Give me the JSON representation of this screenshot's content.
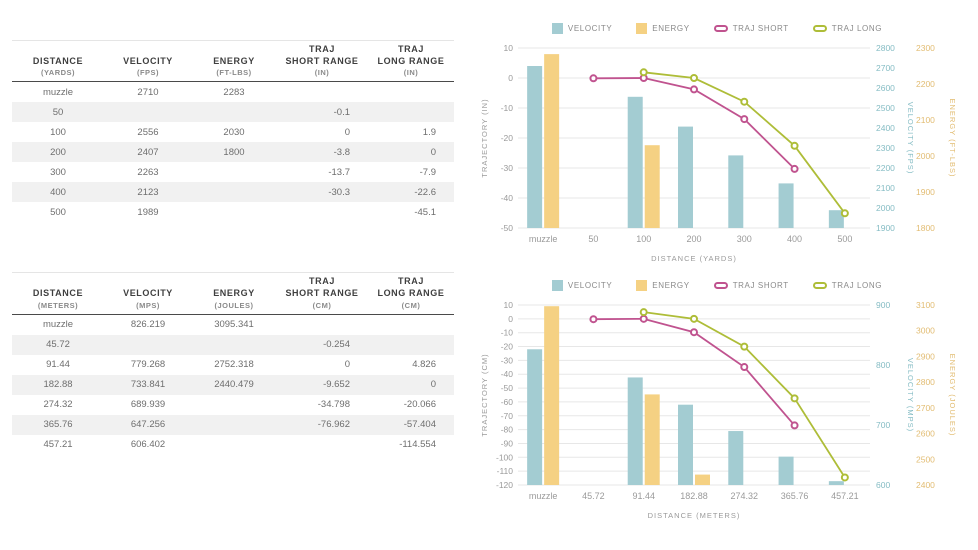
{
  "tables": [
    {
      "name": "imperial",
      "headers": [
        {
          "label": "DISTANCE",
          "unit": "(YARDS)"
        },
        {
          "label": "VELOCITY",
          "unit": "(FPS)"
        },
        {
          "label": "ENERGY",
          "unit": "(FT-LBS)"
        },
        {
          "label": "TRAJ\nSHORT RANGE",
          "unit": "(IN)"
        },
        {
          "label": "TRAJ\nLONG RANGE",
          "unit": "(IN)"
        }
      ],
      "rows": [
        [
          "muzzle",
          "2710",
          "2283",
          "",
          ""
        ],
        [
          "50",
          "",
          "",
          "-0.1",
          ""
        ],
        [
          "100",
          "2556",
          "2030",
          "0",
          "1.9"
        ],
        [
          "200",
          "2407",
          "1800",
          "-3.8",
          "0"
        ],
        [
          "300",
          "2263",
          "",
          "-13.7",
          "-7.9"
        ],
        [
          "400",
          "2123",
          "",
          "-30.3",
          "-22.6"
        ],
        [
          "500",
          "1989",
          "",
          "",
          "-45.1"
        ]
      ]
    },
    {
      "name": "metric",
      "headers": [
        {
          "label": "DISTANCE",
          "unit": "(METERS)"
        },
        {
          "label": "VELOCITY",
          "unit": "(MPS)"
        },
        {
          "label": "ENERGY",
          "unit": "(JOULES)"
        },
        {
          "label": "TRAJ\nSHORT RANGE",
          "unit": "(CM)"
        },
        {
          "label": "TRAJ\nLONG RANGE",
          "unit": "(CM)"
        }
      ],
      "rows": [
        [
          "muzzle",
          "826.219",
          "3095.341",
          "",
          ""
        ],
        [
          "45.72",
          "",
          "",
          "-0.254",
          ""
        ],
        [
          "91.44",
          "779.268",
          "2752.318",
          "0",
          "4.826"
        ],
        [
          "182.88",
          "733.841",
          "2440.479",
          "-9.652",
          "0"
        ],
        [
          "274.32",
          "689.939",
          "",
          "-34.798",
          "-20.066"
        ],
        [
          "365.76",
          "647.256",
          "",
          "-76.962",
          "-57.404"
        ],
        [
          "457.21",
          "606.402",
          "",
          "",
          "-114.554"
        ]
      ]
    }
  ],
  "chart_data": [
    {
      "type": "bar",
      "title": "",
      "xlabel": "DISTANCE (YARDS)",
      "x_categories": [
        "muzzle",
        "50",
        "100",
        "200",
        "300",
        "400",
        "500"
      ],
      "grid": true,
      "legend_position": "top",
      "axes": {
        "trajectory": {
          "label": "TRAJECTORY (IN)",
          "min": -50,
          "max": 10,
          "step": 10
        },
        "velocity": {
          "label": "VELOCITY (FPS)",
          "min": 1900,
          "max": 2800,
          "step": 100
        },
        "energy": {
          "label": "ENERGY (FT-LBS)",
          "min": 1800,
          "max": 2300,
          "step": 100
        }
      },
      "series": [
        {
          "name": "VELOCITY",
          "type": "bar",
          "axis": "velocity",
          "color": "#a3ccd2",
          "values": [
            2710,
            null,
            2556,
            2407,
            2263,
            2123,
            1989
          ]
        },
        {
          "name": "ENERGY",
          "type": "bar",
          "axis": "energy",
          "color": "#f5d183",
          "values": [
            2283,
            null,
            2030,
            1800,
            null,
            null,
            null
          ]
        },
        {
          "name": "TRAJ SHORT",
          "type": "line",
          "axis": "trajectory",
          "color": "#c0538f",
          "values": [
            null,
            -0.1,
            0,
            -3.8,
            -13.7,
            -30.3,
            null
          ]
        },
        {
          "name": "TRAJ LONG",
          "type": "line",
          "axis": "trajectory",
          "color": "#aebd38",
          "values": [
            null,
            null,
            1.9,
            0,
            -7.9,
            -22.6,
            -45.1
          ]
        }
      ]
    },
    {
      "type": "bar",
      "title": "",
      "xlabel": "DISTANCE (METERS)",
      "x_categories": [
        "muzzle",
        "45.72",
        "91.44",
        "182.88",
        "274.32",
        "365.76",
        "457.21"
      ],
      "grid": true,
      "legend_position": "top",
      "axes": {
        "trajectory": {
          "label": "TRAJECTORY (CM)",
          "min": -120,
          "max": 10,
          "step": 10
        },
        "velocity": {
          "label": "VELOCITY (MPS)",
          "min": 600,
          "max": 900,
          "step": 100
        },
        "energy": {
          "label": "ENERGY (JOULES)",
          "min": 2400,
          "max": 3100,
          "step": 100
        }
      },
      "series": [
        {
          "name": "VELOCITY",
          "type": "bar",
          "axis": "velocity",
          "color": "#a3ccd2",
          "values": [
            826.219,
            null,
            779.268,
            733.841,
            689.939,
            647.256,
            606.402
          ]
        },
        {
          "name": "ENERGY",
          "type": "bar",
          "axis": "energy",
          "color": "#f5d183",
          "values": [
            3095.341,
            null,
            2752.318,
            2440.479,
            null,
            null,
            null
          ]
        },
        {
          "name": "TRAJ SHORT",
          "type": "line",
          "axis": "trajectory",
          "color": "#c0538f",
          "values": [
            null,
            -0.254,
            0,
            -9.652,
            -34.798,
            -76.962,
            null
          ]
        },
        {
          "name": "TRAJ LONG",
          "type": "line",
          "axis": "trajectory",
          "color": "#aebd38",
          "values": [
            null,
            null,
            4.826,
            0,
            -20.066,
            -57.404,
            -114.554
          ]
        }
      ]
    }
  ],
  "colors": {
    "velocity": "#a3ccd2",
    "energy": "#f5d183",
    "traj_short": "#c0538f",
    "traj_long": "#aebd38",
    "grid": "#e7e7e7",
    "axis_text": "#9a9a9a",
    "row_stripe": "#f1f1f1"
  }
}
